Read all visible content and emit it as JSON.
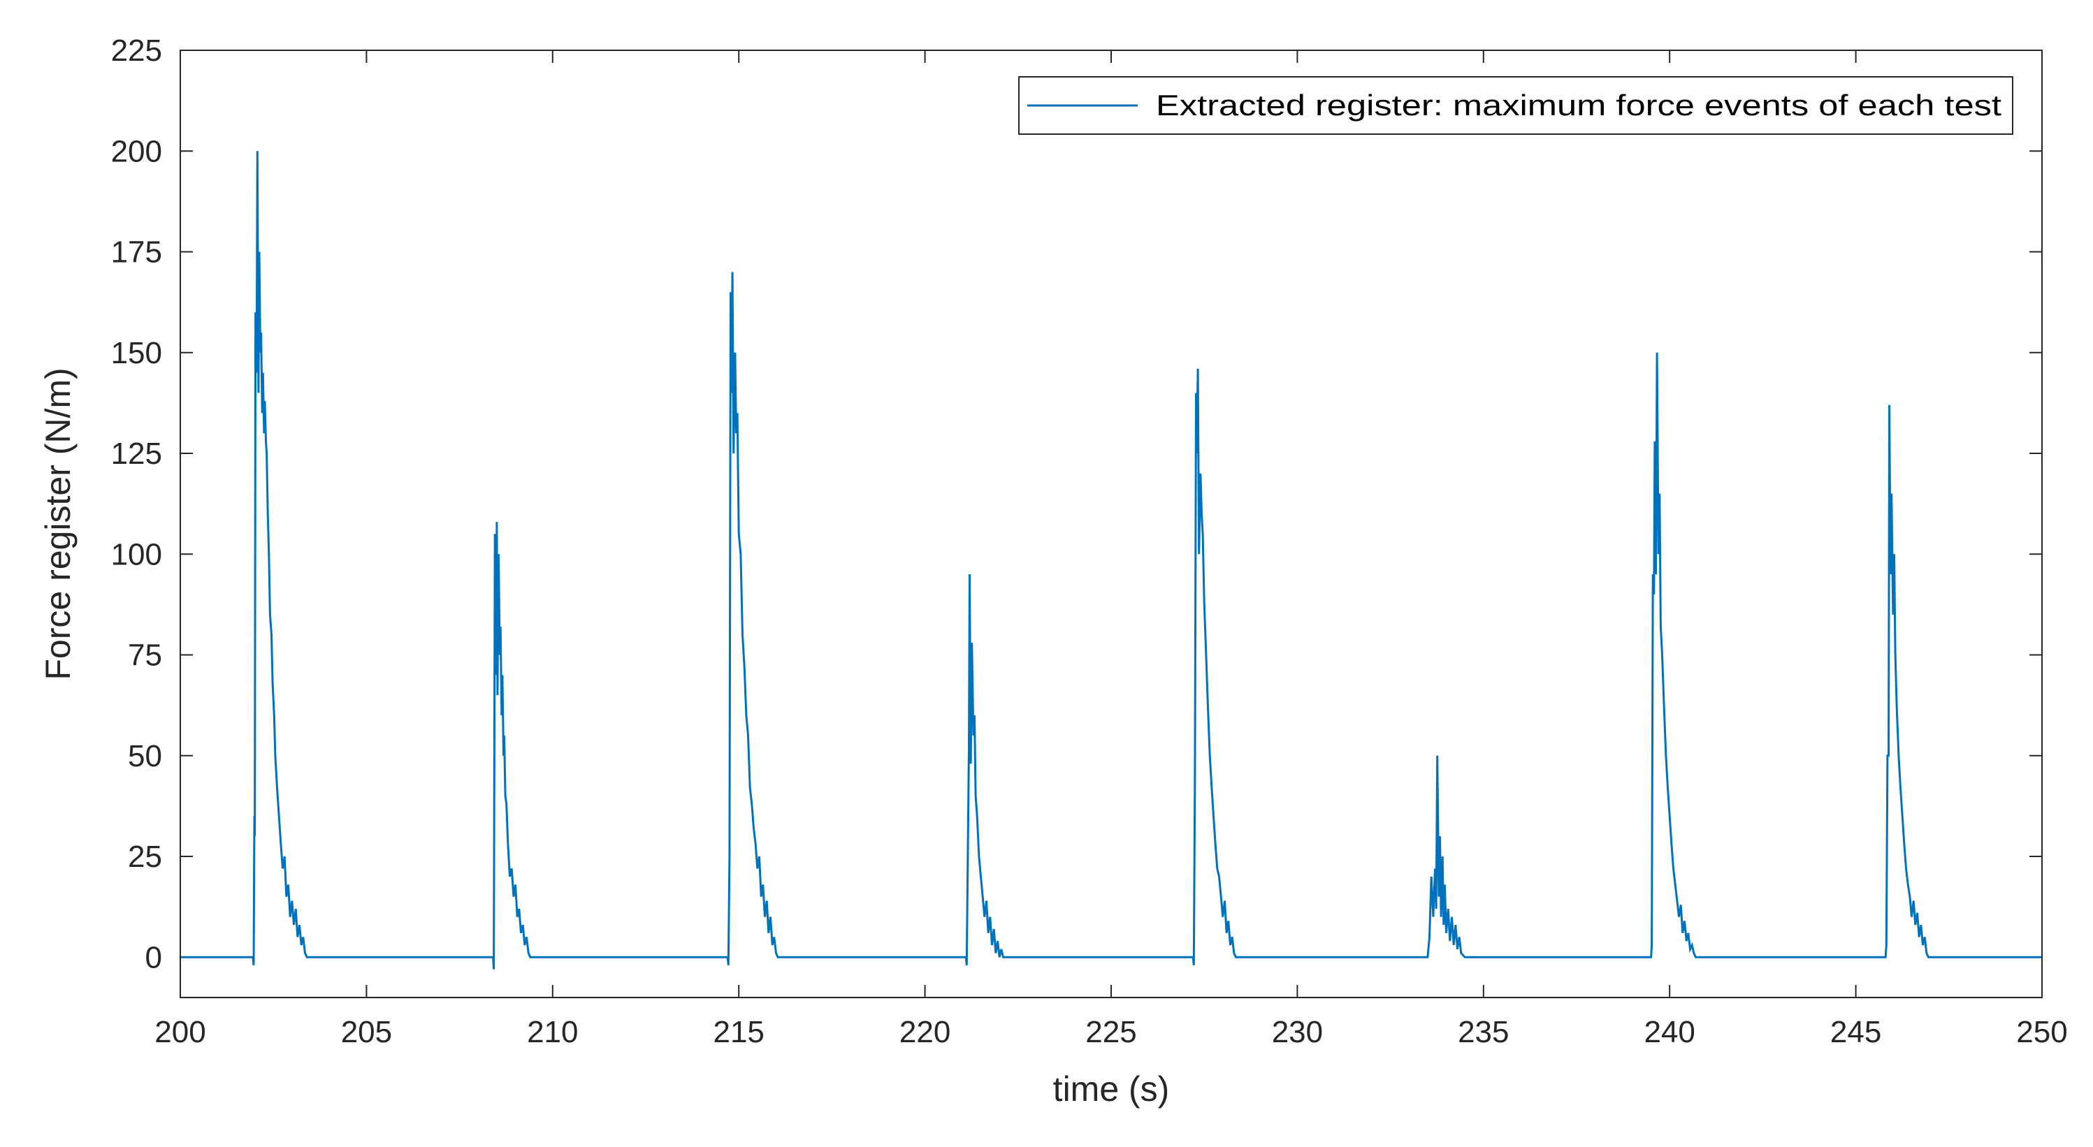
{
  "chart_data": {
    "type": "line",
    "title": "",
    "xlabel": "time (s)",
    "ylabel": "Force register (N/m)",
    "xlim": [
      200,
      250
    ],
    "ylim": [
      -10,
      225
    ],
    "xticks": [
      200,
      205,
      210,
      215,
      220,
      225,
      230,
      235,
      240,
      245,
      250
    ],
    "yticks": [
      0,
      25,
      50,
      75,
      100,
      125,
      150,
      175,
      200,
      225
    ],
    "grid": false,
    "legend_position": "top-right",
    "series": [
      {
        "name": "Extracted register: maximum force events of each test",
        "color": "#0072bd",
        "x": [
          200,
          201.95,
          201.97,
          201.99,
          202.0,
          202.02,
          202.05,
          202.07,
          202.1,
          202.12,
          202.15,
          202.17,
          202.2,
          202.22,
          202.25,
          202.27,
          202.3,
          202.32,
          202.35,
          202.38,
          202.41,
          202.45,
          202.48,
          202.52,
          202.55,
          202.6,
          202.65,
          202.7,
          202.75,
          202.8,
          202.85,
          202.9,
          202.95,
          203.0,
          203.05,
          203.1,
          203.15,
          203.2,
          203.25,
          203.3,
          203.35,
          203.4,
          203.45,
          203.5,
          208.4,
          208.42,
          208.45,
          208.48,
          208.5,
          208.52,
          208.55,
          208.58,
          208.6,
          208.63,
          208.65,
          208.68,
          208.7,
          208.73,
          208.76,
          208.8,
          208.85,
          208.9,
          208.95,
          209.0,
          209.05,
          209.1,
          209.15,
          209.2,
          209.25,
          209.3,
          209.35,
          209.4,
          209.5,
          214.7,
          214.72,
          214.75,
          214.78,
          214.8,
          214.83,
          214.86,
          214.9,
          214.93,
          214.96,
          215.0,
          215.05,
          215.1,
          215.15,
          215.2,
          215.25,
          215.3,
          215.35,
          215.4,
          215.45,
          215.5,
          215.55,
          215.6,
          215.65,
          215.7,
          215.75,
          215.8,
          215.85,
          215.9,
          215.95,
          216.0,
          216.05,
          216.1,
          216.2,
          221.1,
          221.12,
          221.15,
          221.18,
          221.2,
          221.23,
          221.26,
          221.3,
          221.33,
          221.36,
          221.4,
          221.45,
          221.5,
          221.55,
          221.6,
          221.65,
          221.7,
          221.75,
          221.8,
          221.85,
          221.9,
          221.95,
          222.0,
          222.05,
          222.1,
          222.2,
          227.2,
          227.22,
          227.25,
          227.28,
          227.3,
          227.33,
          227.36,
          227.4,
          227.43,
          227.46,
          227.5,
          227.55,
          227.6,
          227.65,
          227.7,
          227.75,
          227.8,
          227.85,
          227.9,
          227.95,
          228.0,
          228.05,
          228.1,
          228.15,
          228.2,
          228.25,
          228.3,
          228.35,
          228.4,
          228.5,
          233.5,
          233.55,
          233.6,
          233.65,
          233.7,
          233.73,
          233.76,
          233.8,
          233.83,
          233.86,
          233.9,
          233.93,
          233.96,
          234.0,
          234.05,
          234.1,
          234.15,
          234.2,
          234.25,
          234.3,
          234.35,
          234.4,
          234.5,
          234.6,
          239.5,
          239.52,
          239.55,
          239.58,
          239.6,
          239.63,
          239.66,
          239.7,
          239.73,
          239.76,
          239.8,
          239.85,
          239.9,
          239.95,
          240.0,
          240.05,
          240.1,
          240.15,
          240.2,
          240.25,
          240.3,
          240.35,
          240.4,
          240.45,
          240.5,
          240.55,
          240.6,
          240.65,
          240.7,
          240.8,
          245.8,
          245.82,
          245.85,
          245.88,
          245.9,
          245.93,
          245.96,
          246.0,
          246.03,
          246.06,
          246.1,
          246.15,
          246.2,
          246.25,
          246.3,
          246.35,
          246.4,
          246.45,
          246.5,
          246.55,
          246.6,
          246.65,
          246.7,
          246.75,
          246.8,
          246.85,
          246.9,
          246.95,
          247.0,
          247.1,
          250
        ],
        "y": [
          0,
          0,
          -2,
          35,
          30,
          160,
          145,
          200,
          140,
          175,
          150,
          155,
          135,
          145,
          130,
          138,
          128,
          125,
          110,
          100,
          85,
          80,
          68,
          60,
          50,
          42,
          35,
          28,
          22,
          25,
          15,
          18,
          10,
          14,
          8,
          12,
          5,
          8,
          3,
          5,
          1,
          0,
          0,
          0,
          0,
          -3,
          105,
          70,
          108,
          65,
          100,
          75,
          82,
          60,
          70,
          50,
          55,
          40,
          38,
          28,
          20,
          22,
          15,
          18,
          10,
          12,
          6,
          8,
          3,
          5,
          1,
          0,
          0,
          0,
          -2,
          25,
          165,
          140,
          170,
          125,
          150,
          130,
          135,
          105,
          100,
          80,
          72,
          60,
          55,
          42,
          38,
          32,
          28,
          22,
          25,
          15,
          18,
          10,
          14,
          6,
          10,
          3,
          5,
          1,
          0,
          0,
          0,
          0,
          -2,
          25,
          52,
          95,
          48,
          78,
          55,
          60,
          40,
          35,
          25,
          20,
          15,
          10,
          14,
          6,
          10,
          3,
          7,
          1,
          4,
          0,
          2,
          0,
          0,
          0,
          -2,
          45,
          140,
          125,
          146,
          100,
          120,
          110,
          105,
          88,
          75,
          62,
          50,
          42,
          35,
          28,
          22,
          20,
          15,
          10,
          14,
          6,
          9,
          3,
          5,
          1,
          0,
          0,
          0,
          0,
          5,
          20,
          10,
          22,
          12,
          50,
          15,
          30,
          10,
          25,
          8,
          18,
          6,
          12,
          4,
          10,
          3,
          8,
          2,
          5,
          1,
          0,
          0,
          0,
          3,
          95,
          90,
          128,
          95,
          150,
          100,
          115,
          82,
          75,
          62,
          50,
          42,
          35,
          28,
          22,
          18,
          14,
          10,
          13,
          6,
          9,
          4,
          6,
          2,
          3,
          1,
          0,
          0,
          0,
          3,
          50,
          50,
          137,
          95,
          115,
          85,
          100,
          75,
          62,
          50,
          42,
          35,
          28,
          22,
          18,
          15,
          10,
          14,
          8,
          11,
          5,
          8,
          3,
          5,
          1,
          0,
          0,
          0,
          0
        ]
      }
    ]
  }
}
